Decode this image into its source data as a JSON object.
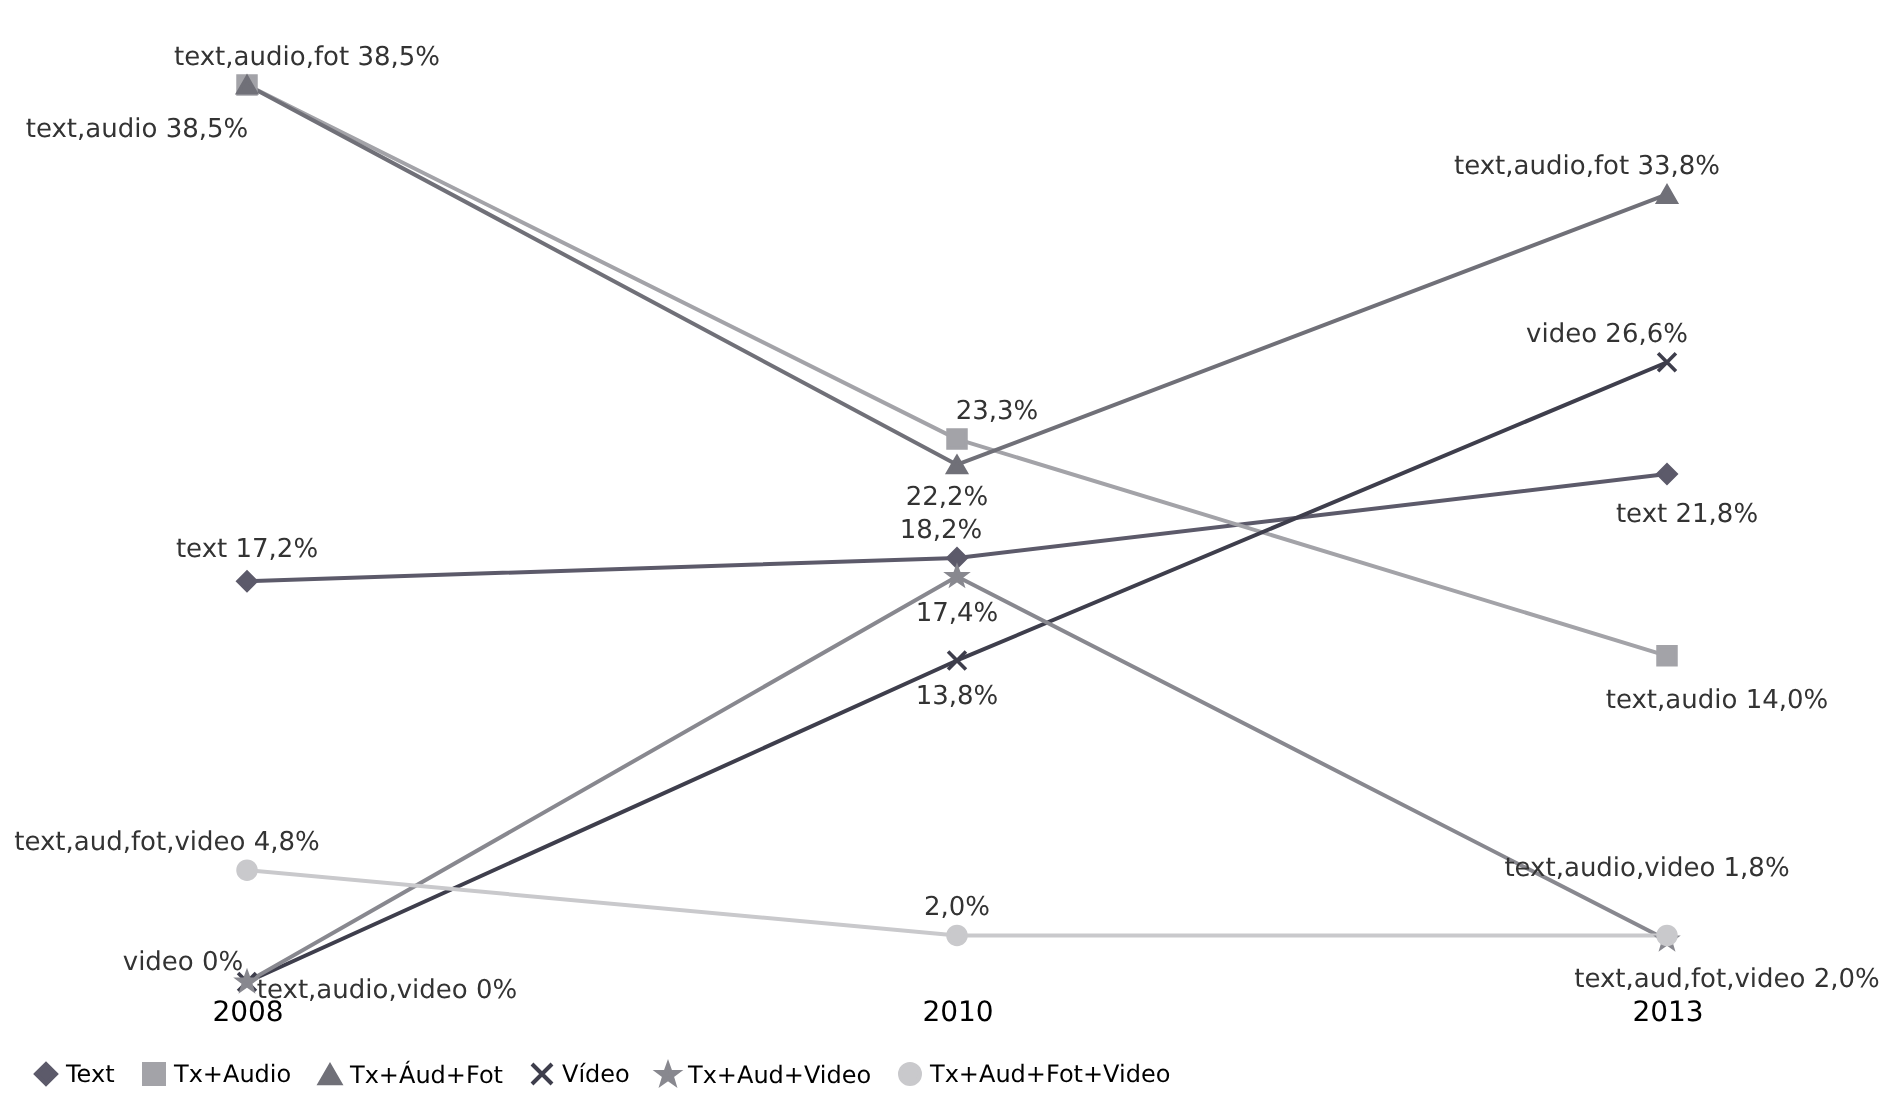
{
  "chart_data": {
    "type": "line",
    "categories": [
      "2008",
      "2010",
      "2013"
    ],
    "legend": "bottom",
    "grid": false,
    "tick_labels": "x",
    "series": [
      {
        "name": "Text",
        "color": "#5c5a6a",
        "marker": "diamond",
        "values": [
          17.2,
          18.2,
          21.8
        ],
        "value_labels": [
          "text 17,2%",
          "18,2%",
          "text 21,8%"
        ]
      },
      {
        "name": "Tx+Audio",
        "color": "#a3a3a8",
        "marker": "square",
        "values": [
          38.5,
          23.3,
          14.0
        ],
        "value_labels": [
          "text,audio 38,5%",
          "23,3%",
          "text,audio 14,0%"
        ]
      },
      {
        "name": "Tx+Áud+Fot",
        "color": "#707078",
        "marker": "triangle",
        "values": [
          38.5,
          22.2,
          33.8
        ],
        "value_labels": [
          "text,audio,fot 38,5%",
          "22,2%",
          "text,audio,fot 33,8%"
        ]
      },
      {
        "name": "Vídeo",
        "color": "#3e3e4c",
        "marker": "cross",
        "values": [
          0,
          13.8,
          26.6
        ],
        "value_labels": [
          "video 0%",
          "13,8%",
          "video 26,6%"
        ]
      },
      {
        "name": "Tx+Aud+Video",
        "color": "#88888f",
        "marker": "star",
        "values": [
          0,
          17.4,
          1.8
        ],
        "value_labels": [
          "text,audio,video 0%",
          "17,4%",
          "text,audio,video 1,8%"
        ]
      },
      {
        "name": "Tx+Aud+Fot+Video",
        "color": "#c9c9cc",
        "marker": "circle",
        "values": [
          4.8,
          2.0,
          2.0
        ],
        "value_labels": [
          "text,aud,fot,video 4,8%",
          "2,0%",
          "text,aud,fot,video 2,0%"
        ]
      }
    ]
  }
}
